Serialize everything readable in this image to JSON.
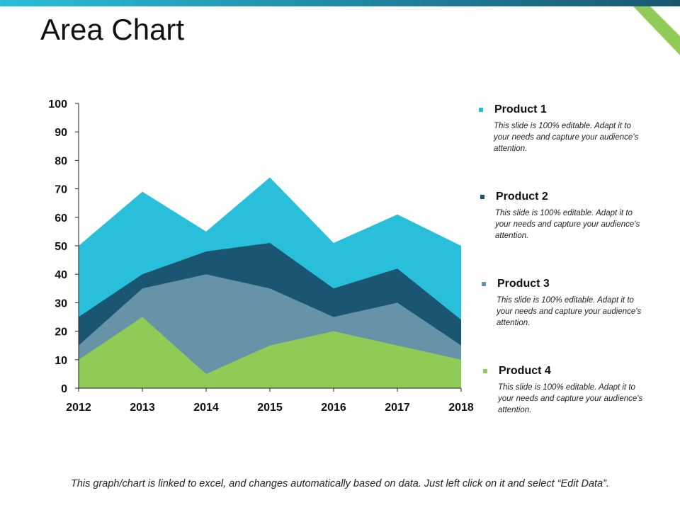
{
  "title": "Area Chart",
  "colors": {
    "product1": "#29BED9",
    "product2": "#1A5672",
    "product3": "#6693A8",
    "product4": "#8FCB56",
    "top_bar_start": "#29BED9",
    "top_bar_end": "#1A5672",
    "corner_accent": "#8FCB56"
  },
  "chart_data": {
    "type": "area",
    "stacked": false,
    "title": "Area Chart",
    "x": [
      "2012",
      "2013",
      "2014",
      "2015",
      "2016",
      "2017",
      "2018"
    ],
    "ylim": [
      0,
      100
    ],
    "yticks": [
      0,
      10,
      20,
      30,
      40,
      50,
      60,
      70,
      80,
      90,
      100
    ],
    "grid": false,
    "legend_position": "right",
    "series": [
      {
        "name": "Product 1",
        "values": [
          50,
          69,
          55,
          74,
          51,
          61,
          50
        ]
      },
      {
        "name": "Product 2",
        "values": [
          25,
          40,
          48,
          51,
          35,
          42,
          24
        ]
      },
      {
        "name": "Product 3",
        "values": [
          15,
          35,
          40,
          35,
          25,
          30,
          15
        ]
      },
      {
        "name": "Product 4",
        "values": [
          10,
          25,
          5,
          15,
          20,
          15,
          10
        ]
      }
    ]
  },
  "legend": [
    {
      "label": "Product 1",
      "desc": "This slide is 100% editable. Adapt it to your needs and capture your audience's attention."
    },
    {
      "label": "Product 2",
      "desc": "This slide is 100% editable. Adapt it to your needs and capture your audience's attention."
    },
    {
      "label": "Product 3",
      "desc": "This slide is 100% editable. Adapt it to your needs and capture your audience's attention."
    },
    {
      "label": "Product 4",
      "desc": "This slide is 100% editable. Adapt it to your needs and capture your audience's attention."
    }
  ],
  "footer": "This graph/chart is linked to excel, and changes automatically based on data. Just left click on it and select “Edit Data”."
}
